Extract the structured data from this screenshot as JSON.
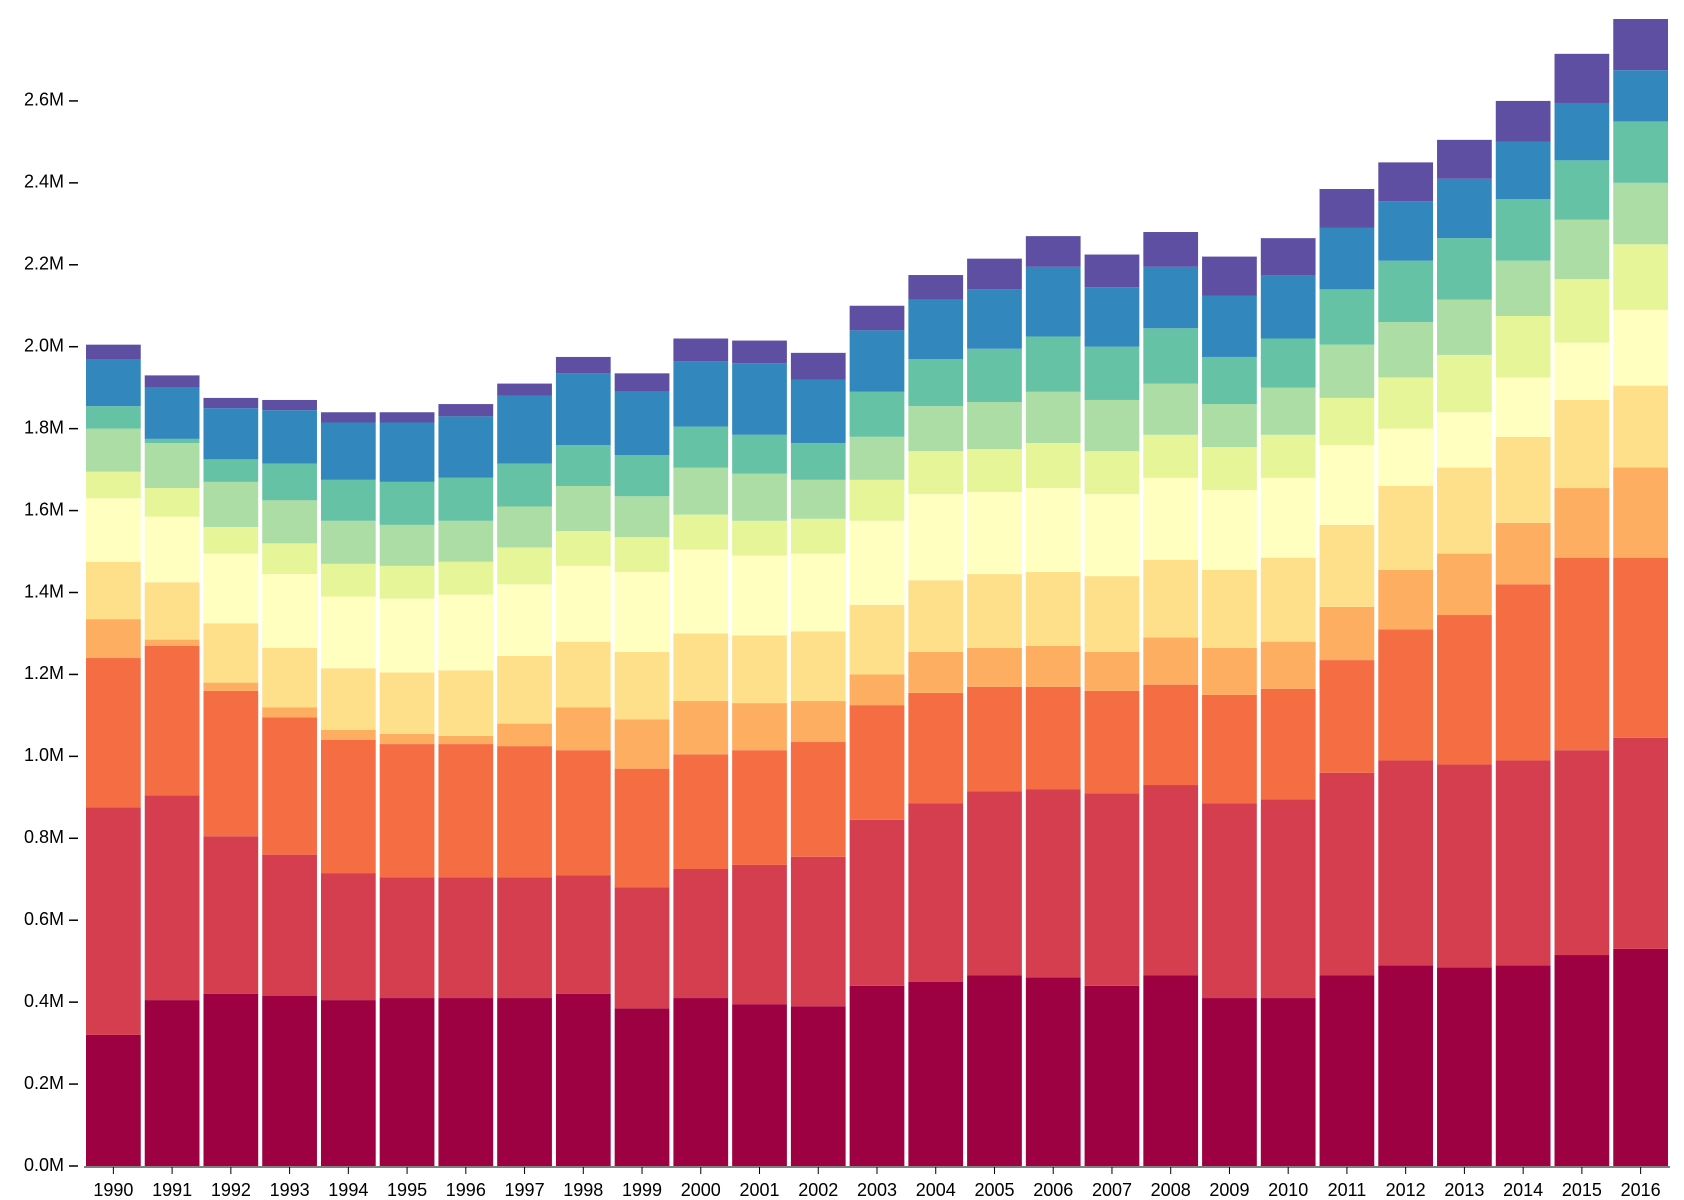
{
  "chart_data": {
    "type": "stacked-bar",
    "categories": [
      "1990",
      "1991",
      "1992",
      "1993",
      "1994",
      "1995",
      "1996",
      "1997",
      "1998",
      "1999",
      "2000",
      "2001",
      "2002",
      "2003",
      "2004",
      "2005",
      "2006",
      "2007",
      "2008",
      "2009",
      "2010",
      "2011",
      "2012",
      "2013",
      "2014",
      "2015",
      "2016"
    ],
    "series": [
      {
        "color": "#9e0142",
        "values": [
          320000,
          405000,
          420000,
          415000,
          405000,
          410000,
          410000,
          410000,
          420000,
          385000,
          410000,
          395000,
          390000,
          440000,
          450000,
          465000,
          460000,
          440000,
          465000,
          410000,
          410000,
          465000,
          490000,
          485000,
          490000,
          515000,
          530000
        ]
      },
      {
        "color": "#d53e4f",
        "values": [
          555000,
          500000,
          385000,
          345000,
          310000,
          295000,
          295000,
          295000,
          290000,
          295000,
          315000,
          340000,
          365000,
          405000,
          435000,
          450000,
          460000,
          470000,
          465000,
          475000,
          485000,
          495000,
          500000,
          495000,
          500000,
          500000,
          515000
        ]
      },
      {
        "color": "#f46d43",
        "values": [
          365000,
          365000,
          355000,
          335000,
          325000,
          325000,
          325000,
          320000,
          305000,
          290000,
          280000,
          280000,
          280000,
          280000,
          270000,
          255000,
          250000,
          250000,
          245000,
          265000,
          270000,
          275000,
          320000,
          365000,
          430000,
          470000,
          440000
        ]
      },
      {
        "color": "#fdae61",
        "values": [
          95000,
          15000,
          20000,
          25000,
          25000,
          25000,
          20000,
          55000,
          105000,
          120000,
          130000,
          115000,
          100000,
          75000,
          100000,
          95000,
          100000,
          95000,
          115000,
          115000,
          115000,
          130000,
          145000,
          150000,
          150000,
          170000,
          220000
        ]
      },
      {
        "color": "#fee08b",
        "values": [
          140000,
          140000,
          145000,
          145000,
          150000,
          150000,
          160000,
          165000,
          160000,
          165000,
          165000,
          165000,
          170000,
          170000,
          175000,
          180000,
          180000,
          185000,
          190000,
          190000,
          205000,
          200000,
          205000,
          210000,
          210000,
          215000,
          200000
        ]
      },
      {
        "color": "#ffffbf",
        "values": [
          155000,
          160000,
          170000,
          180000,
          175000,
          180000,
          185000,
          175000,
          185000,
          195000,
          205000,
          195000,
          190000,
          205000,
          210000,
          200000,
          205000,
          200000,
          200000,
          195000,
          195000,
          195000,
          140000,
          135000,
          145000,
          140000,
          185000
        ]
      },
      {
        "color": "#e6f598",
        "values": [
          65000,
          70000,
          65000,
          75000,
          80000,
          80000,
          80000,
          90000,
          85000,
          85000,
          85000,
          85000,
          85000,
          100000,
          105000,
          105000,
          110000,
          105000,
          105000,
          105000,
          105000,
          115000,
          125000,
          140000,
          150000,
          155000,
          160000
        ]
      },
      {
        "color": "#abdda4",
        "values": [
          105000,
          110000,
          110000,
          105000,
          105000,
          100000,
          100000,
          100000,
          110000,
          100000,
          115000,
          115000,
          95000,
          105000,
          110000,
          115000,
          125000,
          125000,
          125000,
          105000,
          115000,
          130000,
          135000,
          135000,
          135000,
          145000,
          150000
        ]
      },
      {
        "color": "#66c2a5",
        "values": [
          55000,
          10000,
          55000,
          90000,
          100000,
          105000,
          105000,
          105000,
          100000,
          100000,
          100000,
          95000,
          90000,
          110000,
          115000,
          130000,
          135000,
          130000,
          135000,
          115000,
          120000,
          135000,
          150000,
          150000,
          150000,
          145000,
          150000
        ]
      },
      {
        "color": "#3288bd",
        "values": [
          115000,
          125000,
          125000,
          130000,
          140000,
          145000,
          150000,
          165000,
          175000,
          155000,
          160000,
          175000,
          155000,
          150000,
          145000,
          145000,
          170000,
          145000,
          150000,
          150000,
          155000,
          150000,
          145000,
          145000,
          140000,
          140000,
          125000
        ]
      },
      {
        "color": "#5e4fa2",
        "values": [
          35000,
          30000,
          25000,
          25000,
          25000,
          25000,
          30000,
          30000,
          40000,
          45000,
          55000,
          55000,
          65000,
          60000,
          60000,
          75000,
          75000,
          80000,
          85000,
          95000,
          90000,
          95000,
          95000,
          95000,
          100000,
          120000,
          125000
        ]
      }
    ],
    "ylim": [
      0,
      2800000
    ],
    "yticks": [
      {
        "value": 0,
        "label": "0.0M"
      },
      {
        "value": 200000,
        "label": "0.2M"
      },
      {
        "value": 400000,
        "label": "0.4M"
      },
      {
        "value": 600000,
        "label": "0.6M"
      },
      {
        "value": 800000,
        "label": "0.8M"
      },
      {
        "value": 1000000,
        "label": "1.0M"
      },
      {
        "value": 1200000,
        "label": "1.2M"
      },
      {
        "value": 1400000,
        "label": "1.4M"
      },
      {
        "value": 1600000,
        "label": "1.6M"
      },
      {
        "value": 1800000,
        "label": "1.8M"
      },
      {
        "value": 2000000,
        "label": "2.0M"
      },
      {
        "value": 2200000,
        "label": "2.2M"
      },
      {
        "value": 2400000,
        "label": "2.4M"
      },
      {
        "value": 2600000,
        "label": "2.6M"
      }
    ]
  }
}
